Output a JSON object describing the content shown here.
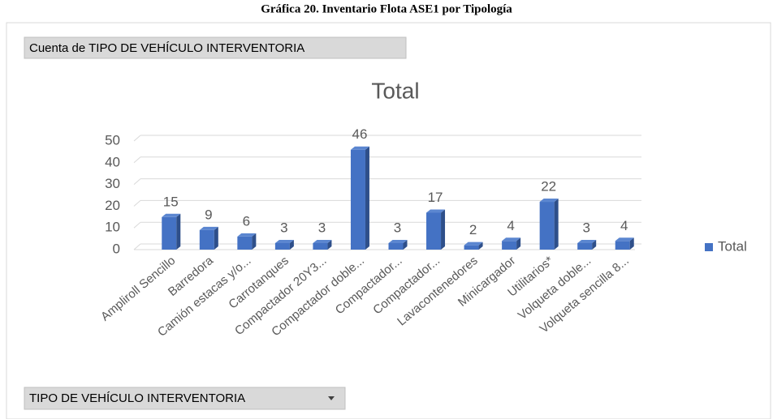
{
  "caption": "Gráfica 20. Inventario Flota ASE1 por Tipología",
  "value_field_button": "Cuenta de TIPO DE VEHÍCULO INTERVENTORIA",
  "axis_field_button": "TIPO DE VEHÍCULO INTERVENTORIA",
  "chart_data": {
    "type": "bar3d",
    "title": "Total",
    "categories": [
      "Ampliroll Sencillo",
      "Barredora",
      "Camión estacas y/o...",
      "Carrotanques",
      "Compactador 20Y3...",
      "Compactador doble...",
      "Compactador...",
      "Compactador...",
      "Lavacontenedores",
      "Minicargador",
      "Utilitarios*",
      "Volqueta doble...",
      "Volqueta sencilla 8..."
    ],
    "series": [
      {
        "name": "Total",
        "color": "#4472c4",
        "values": [
          15,
          9,
          6,
          3,
          3,
          46,
          3,
          17,
          2,
          4,
          22,
          3,
          4
        ]
      }
    ],
    "ylim": [
      0,
      50
    ],
    "yticks": [
      0,
      10,
      20,
      30,
      40,
      50
    ],
    "grid": true,
    "legend": "right"
  }
}
